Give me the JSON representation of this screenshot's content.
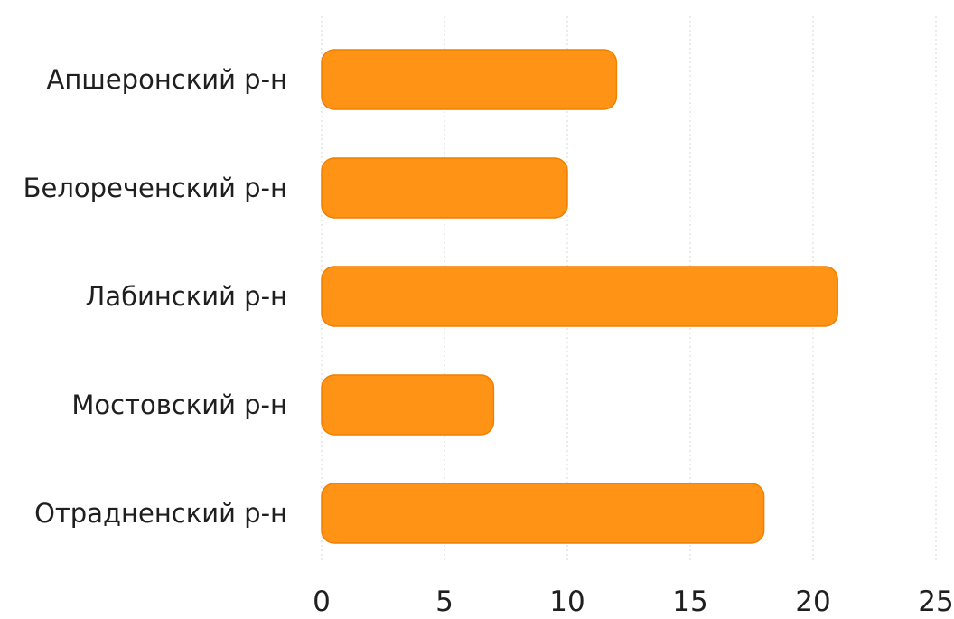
{
  "chart_data": {
    "type": "bar",
    "orientation": "horizontal",
    "categories": [
      "Апшеронский р-н",
      "Белореченский р-н",
      "Лабинский р-н",
      "Мостовский р-н",
      "Отрадненский р-н"
    ],
    "values": [
      12,
      10,
      21,
      7,
      18
    ],
    "xlim": [
      0,
      25
    ],
    "xticks": [
      "0",
      "5",
      "10",
      "15",
      "20",
      "25"
    ],
    "title": "",
    "xlabel": "",
    "ylabel": "",
    "grid": true,
    "bar_color": "#ff9316",
    "bar_stroke": "#f07f00"
  }
}
